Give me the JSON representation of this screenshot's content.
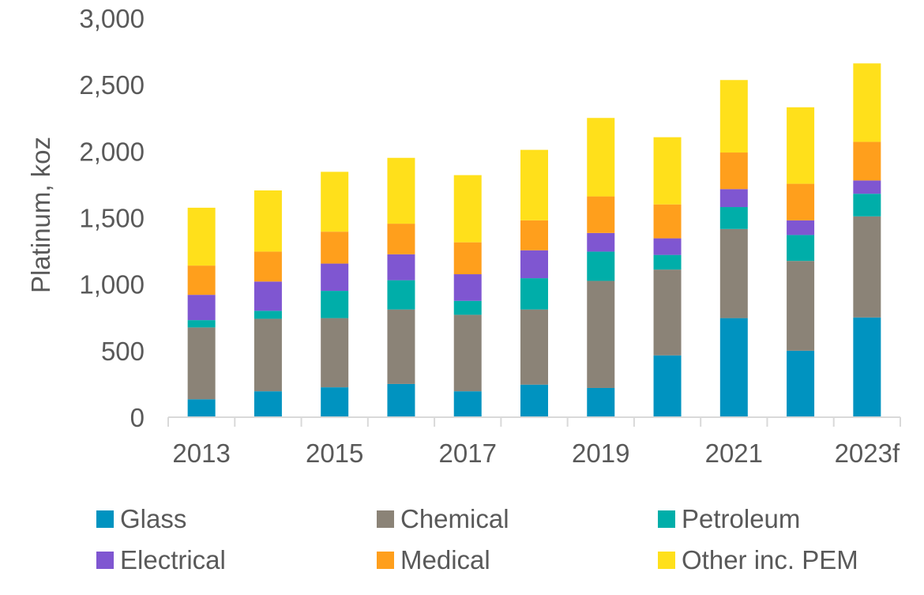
{
  "chart_data": {
    "type": "bar",
    "stacked": true,
    "categories": [
      "2013",
      "2014",
      "2015",
      "2016",
      "2017",
      "2018",
      "2019",
      "2020",
      "2021",
      "2022",
      "2023f"
    ],
    "x_tick_labels": [
      "2013",
      "",
      "2015",
      "",
      "2017",
      "",
      "2019",
      "",
      "2021",
      "",
      "2023f"
    ],
    "ylabel": "Platinum, koz",
    "ylim": [
      0,
      3000
    ],
    "yticks": [
      0,
      500,
      1000,
      1500,
      2000,
      2500,
      3000
    ],
    "ytick_labels": [
      "0",
      "500",
      "1,000",
      "1,500",
      "2,000",
      "2,500",
      "3,000"
    ],
    "grid": false,
    "legend_position": "bottom",
    "series": [
      {
        "name": "Glass",
        "color": "#0093C0",
        "values": [
          135,
          195,
          225,
          250,
          195,
          245,
          220,
          465,
          745,
          500,
          750
        ]
      },
      {
        "name": "Chemical",
        "color": "#8B8377",
        "values": [
          540,
          545,
          520,
          560,
          575,
          565,
          805,
          645,
          670,
          675,
          760
        ]
      },
      {
        "name": "Petroleum",
        "color": "#00AEA9",
        "values": [
          55,
          60,
          205,
          220,
          105,
          235,
          220,
          110,
          165,
          195,
          170
        ]
      },
      {
        "name": "Electrical",
        "color": "#7F56D1",
        "values": [
          190,
          220,
          205,
          195,
          200,
          210,
          140,
          125,
          135,
          110,
          100
        ]
      },
      {
        "name": "Medical",
        "color": "#FF9F1C",
        "values": [
          220,
          225,
          240,
          230,
          240,
          225,
          275,
          255,
          275,
          275,
          290
        ]
      },
      {
        "name": "Other inc. PEM",
        "color": "#FFE01B",
        "values": [
          435,
          460,
          450,
          495,
          505,
          530,
          590,
          505,
          545,
          575,
          590
        ]
      }
    ]
  }
}
